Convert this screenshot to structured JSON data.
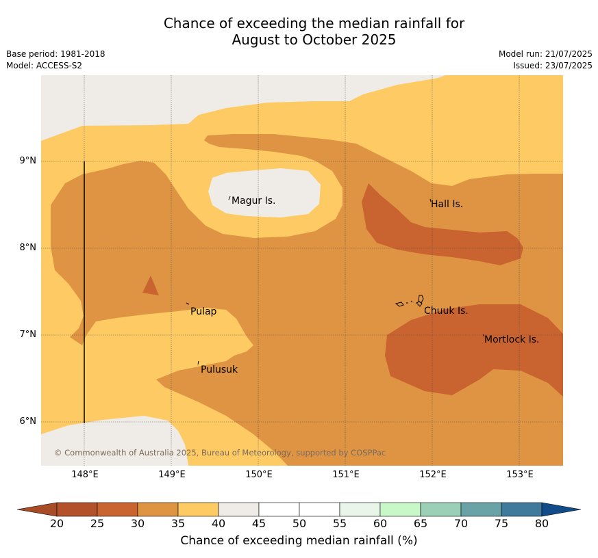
{
  "title_line1": "Chance of exceeding the median rainfall for",
  "title_line2": "August to October 2025",
  "meta_left": [
    "Base period: 1981-2018",
    "Model: ACCESS-S2"
  ],
  "meta_right": [
    "Model run: 21/07/2025",
    "Issued: 23/07/2025"
  ],
  "map": {
    "lat_labels": [
      "9°N",
      "8°N",
      "7°N",
      "6°N"
    ],
    "lon_labels": [
      "148°E",
      "149°E",
      "150°E",
      "151°E",
      "152°E",
      "153°E"
    ],
    "places": [
      {
        "name": "Magur Is."
      },
      {
        "name": "Hall Is."
      },
      {
        "name": "Pulap"
      },
      {
        "name": "Chuuk Is."
      },
      {
        "name": "Mortlock Is."
      },
      {
        "name": "Pulusuk"
      }
    ],
    "copyright": "© Commonwealth of Australia 2025, Bureau of Meteorology, supported by COSPPac",
    "colors": {
      "band_40_45": "#efebe6",
      "band_35_40": "#fdca64",
      "band_30_35": "#df9443",
      "band_25_30": "#c9632f"
    }
  },
  "colorbar": {
    "ticks": [
      "20",
      "25",
      "30",
      "35",
      "40",
      "45",
      "50",
      "55",
      "60",
      "65",
      "70",
      "75",
      "80"
    ],
    "colors": [
      "#a84c28",
      "#b2512a",
      "#c9632f",
      "#df9443",
      "#fdca64",
      "#efebe6",
      "#ffffff",
      "#ffffff",
      "#e9f5e9",
      "#c8f8c8",
      "#9bcfb6",
      "#6aa3a7",
      "#3f7a9c",
      "#114b8a"
    ],
    "label": "Chance of exceeding median rainfall (%)"
  }
}
